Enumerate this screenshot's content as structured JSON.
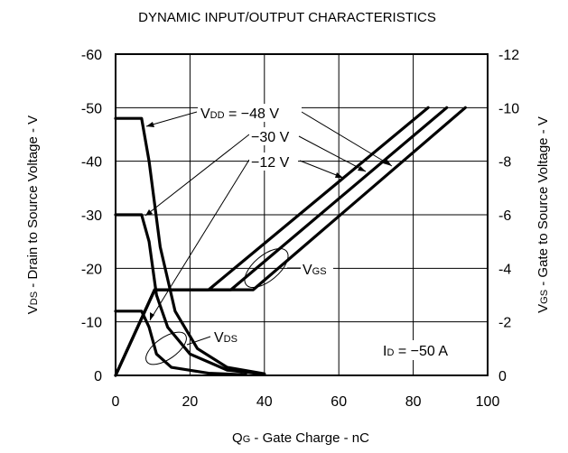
{
  "chart_data": {
    "type": "line",
    "title": "DYNAMIC INPUT/OUTPUT CHARACTERISTICS",
    "xlabel": {
      "sym": "Q",
      "sub": "G",
      "rest": " - Gate Charge - nC"
    },
    "ylabel_left": {
      "sym": "V",
      "sub": "DS",
      "rest": " - Drain to Source Voltage - V"
    },
    "ylabel_right": {
      "sym": "V",
      "sub": "GS",
      "rest": " - Gate to Source Voltage - V"
    },
    "xlim": [
      0,
      100
    ],
    "ylim_left": [
      0,
      -60
    ],
    "ylim_right": [
      0,
      -12
    ],
    "grid": true,
    "x_ticks": [
      "0",
      "20",
      "40",
      "60",
      "80",
      "100"
    ],
    "y_left_ticks": [
      "0",
      "-10",
      "-20",
      "-30",
      "-40",
      "-50",
      "-60"
    ],
    "y_right_ticks": [
      "0",
      "-2",
      "-4",
      "-6",
      "-8",
      "-10",
      "-12"
    ],
    "series": [
      {
        "group": "VDS",
        "vdd": "-48 V",
        "points": [
          [
            0,
            -48
          ],
          [
            7,
            -48
          ],
          [
            9,
            -40
          ],
          [
            12,
            -24
          ],
          [
            16,
            -12
          ],
          [
            22,
            -5
          ],
          [
            30,
            -1.5
          ],
          [
            40,
            -0.3
          ]
        ]
      },
      {
        "group": "VDS",
        "vdd": "-30 V",
        "points": [
          [
            0,
            -30
          ],
          [
            7,
            -30
          ],
          [
            9,
            -25
          ],
          [
            11,
            -15
          ],
          [
            14,
            -9
          ],
          [
            20,
            -4
          ],
          [
            30,
            -1
          ],
          [
            40,
            -0.2
          ]
        ]
      },
      {
        "group": "VDS",
        "vdd": "-12 V",
        "points": [
          [
            0,
            -12
          ],
          [
            7,
            -12
          ],
          [
            9,
            -9
          ],
          [
            11,
            -4
          ],
          [
            15,
            -1.5
          ],
          [
            25,
            -0.4
          ],
          [
            35,
            -0.1
          ]
        ]
      },
      {
        "group": "VGS",
        "vdd": "-12 V",
        "points": [
          [
            0,
            0
          ],
          [
            10.5,
            -3.2
          ],
          [
            25,
            -3.2
          ],
          [
            84,
            -10
          ]
        ]
      },
      {
        "group": "VGS",
        "vdd": "-30 V",
        "points": [
          [
            0,
            0
          ],
          [
            10.5,
            -3.2
          ],
          [
            31,
            -3.2
          ],
          [
            89,
            -10
          ]
        ]
      },
      {
        "group": "VGS",
        "vdd": "-48 V",
        "points": [
          [
            0,
            0
          ],
          [
            10.5,
            -3.2
          ],
          [
            37,
            -3.2
          ],
          [
            94,
            -10
          ]
        ]
      }
    ],
    "annotations": {
      "vdd_prefix": {
        "sym": "V",
        "sub": "DD",
        "rest": " = −48 V"
      },
      "vdd_30": "−30 V",
      "vdd_12": "−12 V",
      "vgs": {
        "sym": "V",
        "sub": "GS"
      },
      "vds": {
        "sym": "V",
        "sub": "DS"
      },
      "id": {
        "sym": "I",
        "sub": "D",
        "rest": " = −50 A"
      }
    }
  }
}
